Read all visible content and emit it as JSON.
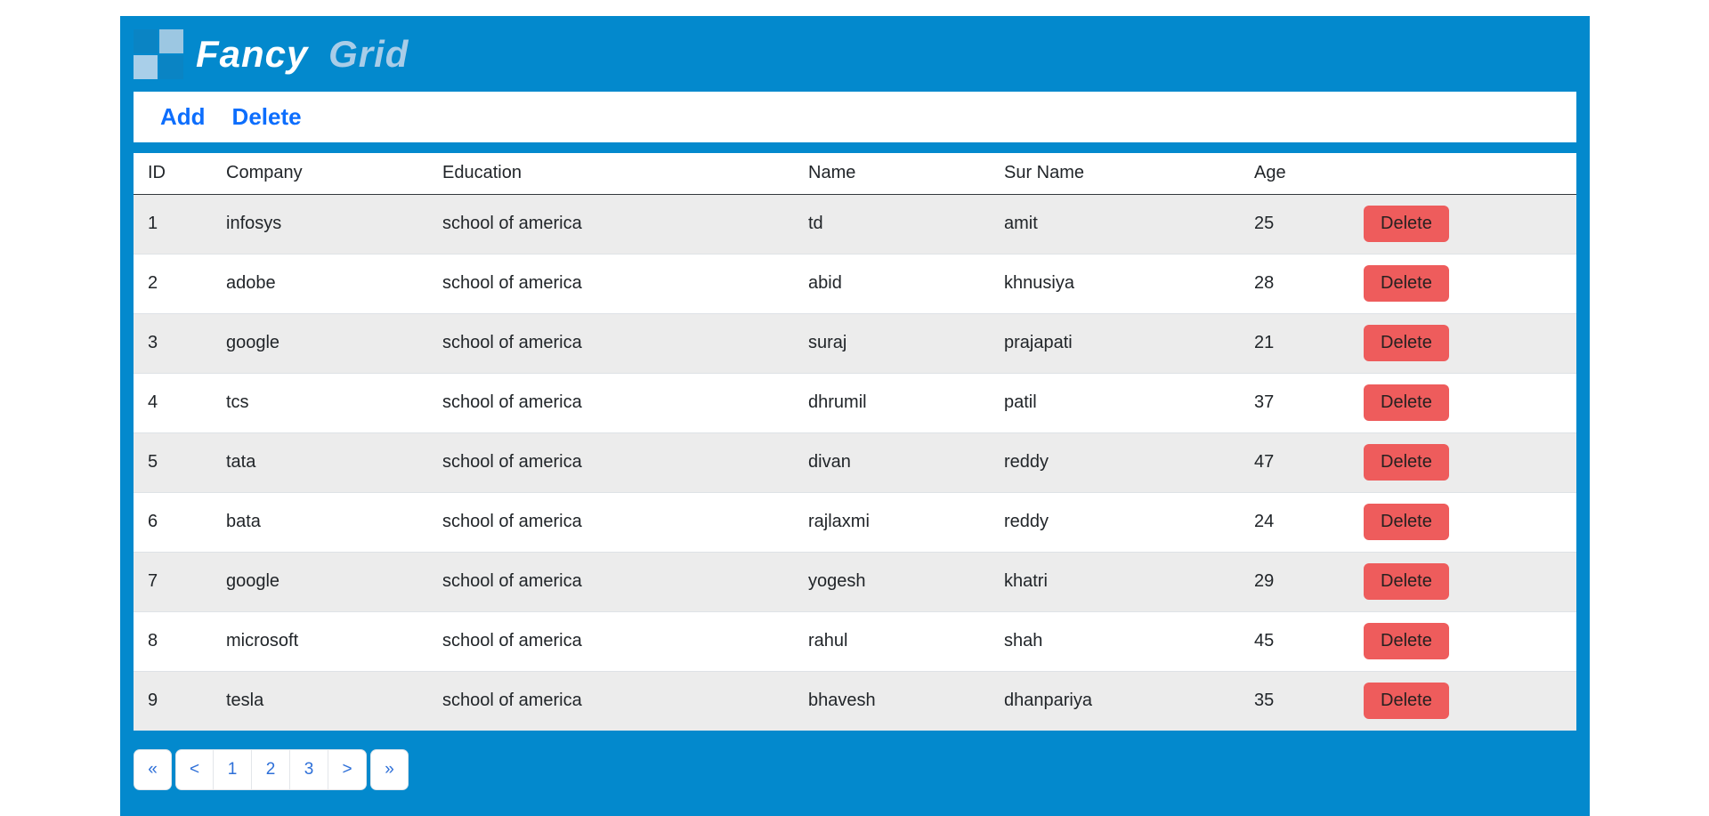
{
  "brand": {
    "name_primary": "Fancy",
    "name_secondary": "Grid"
  },
  "toolbar": {
    "add_label": "Add",
    "delete_label": "Delete"
  },
  "table": {
    "columns": [
      "ID",
      "Company",
      "Education",
      "Name",
      "Sur Name",
      "Age",
      ""
    ],
    "rows": [
      {
        "id": "1",
        "company": "infosys",
        "education": "school of america",
        "name": "td",
        "surname": "amit",
        "age": "25",
        "action": "Delete"
      },
      {
        "id": "2",
        "company": "adobe",
        "education": "school of america",
        "name": "abid",
        "surname": "khnusiya",
        "age": "28",
        "action": "Delete"
      },
      {
        "id": "3",
        "company": "google",
        "education": "school of america",
        "name": "suraj",
        "surname": "prajapati",
        "age": "21",
        "action": "Delete"
      },
      {
        "id": "4",
        "company": "tcs",
        "education": "school of america",
        "name": "dhrumil",
        "surname": "patil",
        "age": "37",
        "action": "Delete"
      },
      {
        "id": "5",
        "company": "tata",
        "education": "school of america",
        "name": "divan",
        "surname": "reddy",
        "age": "47",
        "action": "Delete"
      },
      {
        "id": "6",
        "company": "bata",
        "education": "school of america",
        "name": "rajlaxmi",
        "surname": "reddy",
        "age": "24",
        "action": "Delete"
      },
      {
        "id": "7",
        "company": "google",
        "education": "school of america",
        "name": "yogesh",
        "surname": "khatri",
        "age": "29",
        "action": "Delete"
      },
      {
        "id": "8",
        "company": "microsoft",
        "education": "school of america",
        "name": "rahul",
        "surname": "shah",
        "age": "45",
        "action": "Delete"
      },
      {
        "id": "9",
        "company": "tesla",
        "education": "school of america",
        "name": "bhavesh",
        "surname": "dhanpariya",
        "age": "35",
        "action": "Delete"
      }
    ]
  },
  "pagination": {
    "first": "«",
    "prev": "<",
    "pages": [
      "1",
      "2",
      "3"
    ],
    "next": ">",
    "last": "»"
  },
  "colors": {
    "header_blue": "#0389cd",
    "link_blue": "#0d6efd",
    "delete_button_red": "#ee5c5c",
    "row_stripe": "#ececec",
    "logo_light_blue": "#a9cfe9"
  }
}
